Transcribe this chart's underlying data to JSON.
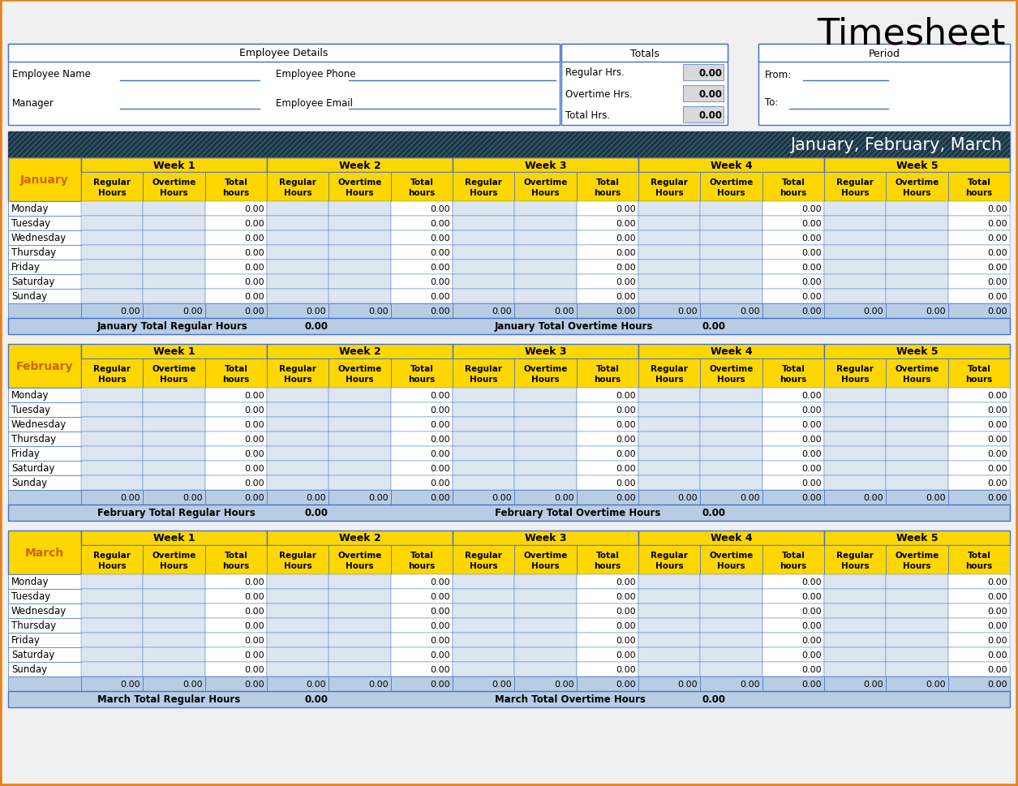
{
  "title": "Timesheet",
  "bg_color": "#f0f0f0",
  "border_color": "#4472c4",
  "orange_border": "#e6821e",
  "yellow_bg": "#ffd700",
  "yellow_text": "#cc6600",
  "dark_header_bg": "#1c3545",
  "light_blue_bg": "#dce6f1",
  "light_blue2_bg": "#b8cce4",
  "gray_bg": "#d9d9d9",
  "white": "#ffffff",
  "black": "#000000",
  "months": [
    "January",
    "February",
    "March"
  ],
  "weeks": [
    "Week 1",
    "Week 2",
    "Week 3",
    "Week 4",
    "Week 5"
  ],
  "days": [
    "Monday",
    "Tuesday",
    "Wednesday",
    "Thursday",
    "Friday",
    "Saturday",
    "Sunday"
  ],
  "sub_cols": [
    [
      "Regular",
      "Hours"
    ],
    [
      "Overtime",
      "Hours"
    ],
    [
      "Total",
      "hours"
    ]
  ]
}
